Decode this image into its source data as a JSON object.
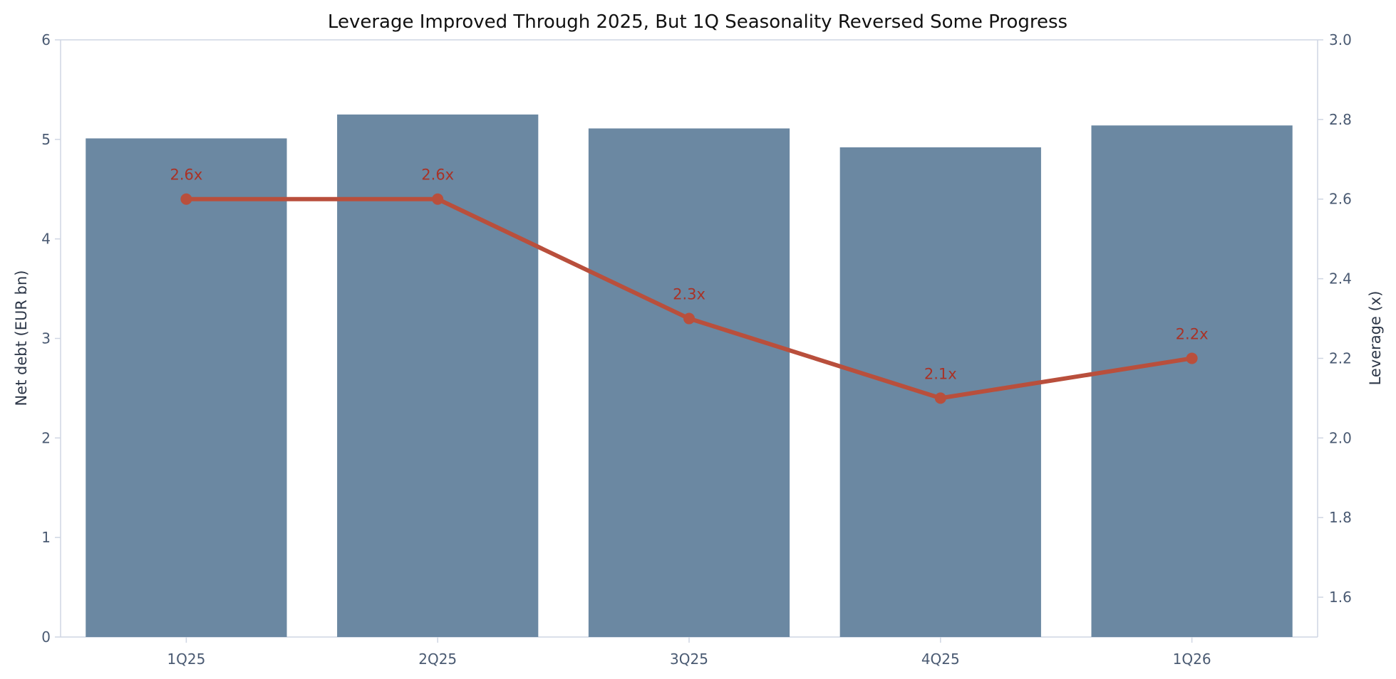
{
  "chart_data": {
    "type": "bar",
    "title": "Leverage Improved Through 2025, But 1Q Seasonality Reversed Some Progress",
    "categories": [
      "1Q25",
      "2Q25",
      "3Q25",
      "4Q25",
      "1Q26"
    ],
    "series": [
      {
        "values": [
          5.01,
          5.25,
          5.11,
          4.92,
          5.14
        ],
        "type": "bar",
        "axis": "left",
        "color": "#6b88a2"
      },
      {
        "values": [
          2.6,
          2.6,
          2.3,
          2.1,
          2.2
        ],
        "type": "line",
        "axis": "right",
        "color": "#b94f3c",
        "labels": [
          "2.6x",
          "2.6x",
          "2.3x",
          "2.1x",
          "2.2x"
        ]
      }
    ],
    "ylabel": "Net debt (EUR bn)",
    "ylabel_right": "Leverage (x)",
    "ylim": [
      0,
      6
    ],
    "ylim_right": [
      1.5,
      3.0
    ],
    "yticks": [
      0,
      1,
      2,
      3,
      4,
      5,
      6
    ],
    "yticks_right": [
      "1.6",
      "1.8",
      "2.0",
      "2.2",
      "2.4",
      "2.6",
      "2.8",
      "3.0"
    ],
    "grid": false,
    "label_color": "#a93226",
    "axis_color": "#cfd6e3"
  }
}
